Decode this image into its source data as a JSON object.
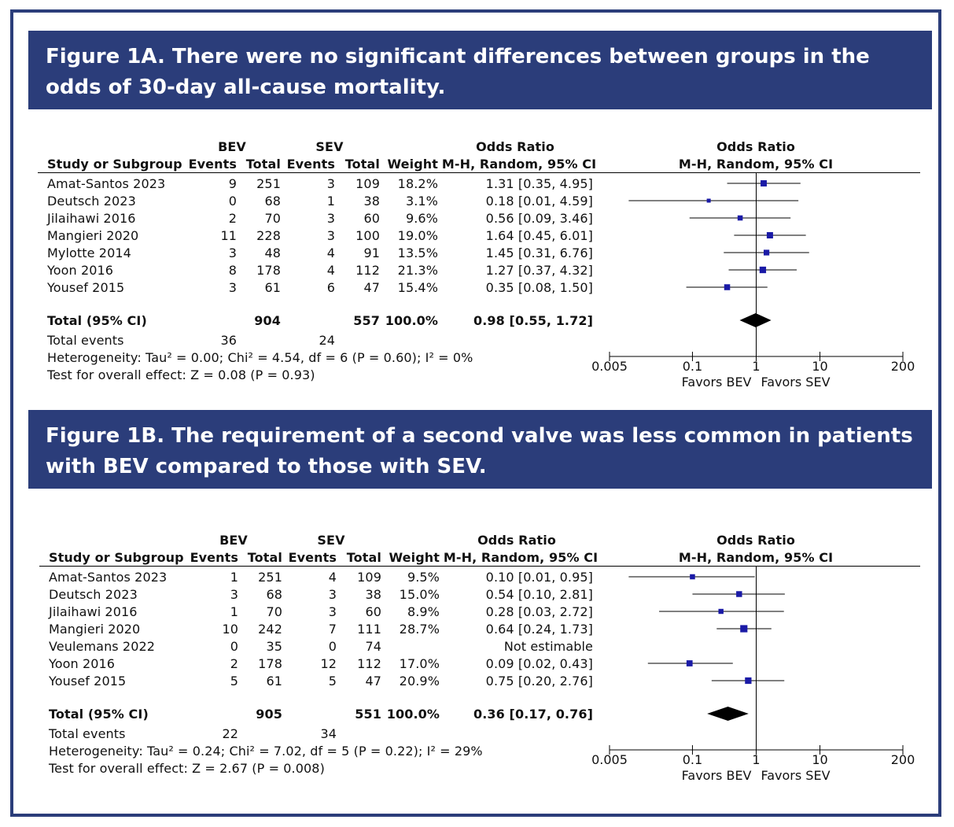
{
  "figures": [
    {
      "title": "Figure 1A. There were no significant differences between groups in the odds of 30-day all-cause mortality.",
      "headers": {
        "group1": "BEV",
        "group2": "SEV",
        "study": "Study or Subgroup",
        "events": "Events",
        "total": "Total",
        "weight": "Weight",
        "or_title": "Odds Ratio",
        "or_method": "M-H, Random, 95% CI"
      },
      "rows": [
        {
          "study": "Amat-Santos 2023",
          "e1": "9",
          "t1": "251",
          "e2": "3",
          "t2": "109",
          "weight": "18.2%",
          "ci": "1.31 [0.35, 4.95]"
        },
        {
          "study": "Deutsch 2023",
          "e1": "0",
          "t1": "68",
          "e2": "1",
          "t2": "38",
          "weight": "3.1%",
          "ci": "0.18 [0.01, 4.59]"
        },
        {
          "study": "Jilaihawi 2016",
          "e1": "2",
          "t1": "70",
          "e2": "3",
          "t2": "60",
          "weight": "9.6%",
          "ci": "0.56 [0.09, 3.46]"
        },
        {
          "study": "Mangieri 2020",
          "e1": "11",
          "t1": "228",
          "e2": "3",
          "t2": "100",
          "weight": "19.0%",
          "ci": "1.64 [0.45, 6.01]"
        },
        {
          "study": "Mylotte 2014",
          "e1": "3",
          "t1": "48",
          "e2": "4",
          "t2": "91",
          "weight": "13.5%",
          "ci": "1.45 [0.31, 6.76]"
        },
        {
          "study": "Yoon 2016",
          "e1": "8",
          "t1": "178",
          "e2": "4",
          "t2": "112",
          "weight": "21.3%",
          "ci": "1.27 [0.37, 4.32]"
        },
        {
          "study": "Yousef 2015",
          "e1": "3",
          "t1": "61",
          "e2": "6",
          "t2": "47",
          "weight": "15.4%",
          "ci": "0.35 [0.08, 1.50]"
        }
      ],
      "total": {
        "label": "Total (95% CI)",
        "t1": "904",
        "t2": "557",
        "weight": "100.0%",
        "ci": "0.98 [0.55, 1.72]"
      },
      "total_events": {
        "label": "Total events",
        "e1": "36",
        "e2": "24"
      },
      "heterogeneity": "Heterogeneity: Tau² = 0.00; Chi² = 4.54, df = 6 (P = 0.60); I² = 0%",
      "overall": "Test for overall effect: Z = 0.08 (P = 0.93)",
      "axis": {
        "ticks": [
          "0.005",
          "0.1",
          "1",
          "10",
          "200"
        ],
        "favors_left": "Favors BEV",
        "favors_right": "Favors SEV"
      }
    },
    {
      "title": "Figure 1B. The requirement of a second valve was less common in patients with BEV compared to those with SEV.",
      "headers": {
        "group1": "BEV",
        "group2": "SEV",
        "study": "Study or Subgroup",
        "events": "Events",
        "total": "Total",
        "weight": "Weight",
        "or_title": "Odds Ratio",
        "or_method": "M-H, Random, 95% CI"
      },
      "rows": [
        {
          "study": "Amat-Santos 2023",
          "e1": "1",
          "t1": "251",
          "e2": "4",
          "t2": "109",
          "weight": "9.5%",
          "ci": "0.10 [0.01, 0.95]"
        },
        {
          "study": "Deutsch 2023",
          "e1": "3",
          "t1": "68",
          "e2": "3",
          "t2": "38",
          "weight": "15.0%",
          "ci": "0.54 [0.10, 2.81]"
        },
        {
          "study": "Jilaihawi 2016",
          "e1": "1",
          "t1": "70",
          "e2": "3",
          "t2": "60",
          "weight": "8.9%",
          "ci": "0.28 [0.03, 2.72]"
        },
        {
          "study": "Mangieri 2020",
          "e1": "10",
          "t1": "242",
          "e2": "7",
          "t2": "111",
          "weight": "28.7%",
          "ci": "0.64 [0.24, 1.73]"
        },
        {
          "study": "Veulemans 2022",
          "e1": "0",
          "t1": "35",
          "e2": "0",
          "t2": "74",
          "weight": "",
          "ci": "Not estimable"
        },
        {
          "study": "Yoon 2016",
          "e1": "2",
          "t1": "178",
          "e2": "12",
          "t2": "112",
          "weight": "17.0%",
          "ci": "0.09 [0.02, 0.43]"
        },
        {
          "study": "Yousef 2015",
          "e1": "5",
          "t1": "61",
          "e2": "5",
          "t2": "47",
          "weight": "20.9%",
          "ci": "0.75 [0.20, 2.76]"
        }
      ],
      "total": {
        "label": "Total (95% CI)",
        "t1": "905",
        "t2": "551",
        "weight": "100.0%",
        "ci": "0.36 [0.17, 0.76]"
      },
      "total_events": {
        "label": "Total events",
        "e1": "22",
        "e2": "34"
      },
      "heterogeneity": "Heterogeneity: Tau² = 0.24; Chi² = 7.02, df = 5 (P = 0.22); I² = 29%",
      "overall": "Test for overall effect: Z = 2.67 (P = 0.008)",
      "axis": {
        "ticks": [
          "0.005",
          "0.1",
          "1",
          "10",
          "200"
        ],
        "favors_left": "Favors BEV",
        "favors_right": "Favors SEV"
      }
    }
  ],
  "colors": {
    "banner": "#2b3d7a",
    "marker": "#1a1aa6",
    "text": "#111111"
  },
  "chart_data": [
    {
      "type": "forest",
      "scale": "log",
      "xlim": [
        0.005,
        200
      ],
      "x_ticks": [
        0.005,
        0.1,
        1,
        10,
        200
      ],
      "studies": [
        {
          "or": 1.31,
          "lo": 0.35,
          "hi": 4.95,
          "weight": 18.2
        },
        {
          "or": 0.18,
          "lo": 0.01,
          "hi": 4.59,
          "weight": 3.1
        },
        {
          "or": 0.56,
          "lo": 0.09,
          "hi": 3.46,
          "weight": 9.6
        },
        {
          "or": 1.64,
          "lo": 0.45,
          "hi": 6.01,
          "weight": 19.0
        },
        {
          "or": 1.45,
          "lo": 0.31,
          "hi": 6.76,
          "weight": 13.5
        },
        {
          "or": 1.27,
          "lo": 0.37,
          "hi": 4.32,
          "weight": 21.3
        },
        {
          "or": 0.35,
          "lo": 0.08,
          "hi": 1.5,
          "weight": 15.4
        }
      ],
      "pooled": {
        "or": 0.98,
        "lo": 0.55,
        "hi": 1.72
      }
    },
    {
      "type": "forest",
      "scale": "log",
      "xlim": [
        0.005,
        200
      ],
      "x_ticks": [
        0.005,
        0.1,
        1,
        10,
        200
      ],
      "studies": [
        {
          "or": 0.1,
          "lo": 0.01,
          "hi": 0.95,
          "weight": 9.5
        },
        {
          "or": 0.54,
          "lo": 0.1,
          "hi": 2.81,
          "weight": 15.0
        },
        {
          "or": 0.28,
          "lo": 0.03,
          "hi": 2.72,
          "weight": 8.9
        },
        {
          "or": 0.64,
          "lo": 0.24,
          "hi": 1.73,
          "weight": 28.7
        },
        null,
        {
          "or": 0.09,
          "lo": 0.02,
          "hi": 0.43,
          "weight": 17.0
        },
        {
          "or": 0.75,
          "lo": 0.2,
          "hi": 2.76,
          "weight": 20.9
        }
      ],
      "pooled": {
        "or": 0.36,
        "lo": 0.17,
        "hi": 0.76
      }
    }
  ]
}
